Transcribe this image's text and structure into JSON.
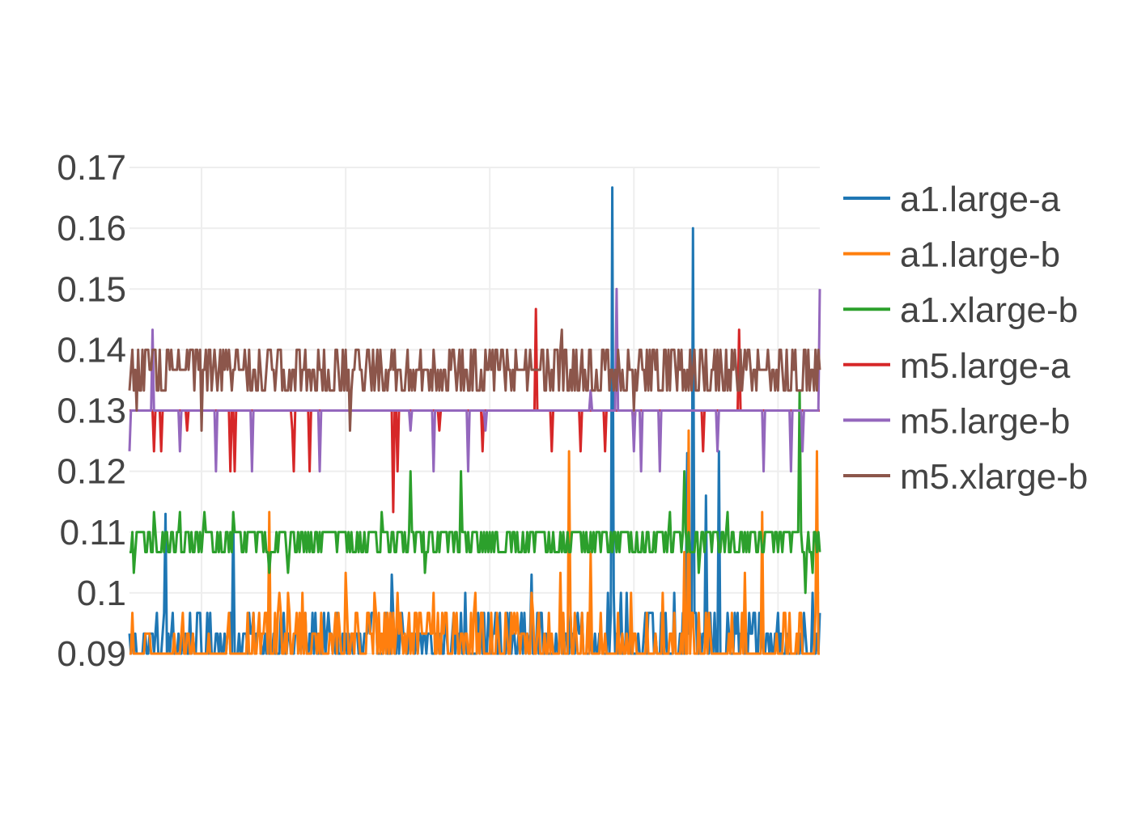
{
  "chart_data": {
    "type": "line",
    "title": "",
    "xlabel": "",
    "ylabel": "",
    "ylim": [
      0.09,
      0.17
    ],
    "yticks": [
      "0.17",
      "0.16",
      "0.15",
      "0.14",
      "0.13",
      "0.12",
      "0.11",
      "0.1",
      "0.09"
    ],
    "ytick_values": [
      0.17,
      0.16,
      0.15,
      0.14,
      0.13,
      0.12,
      0.11,
      0.1,
      0.09
    ],
    "x_count": 480,
    "x_gridlines_at": [
      50,
      150,
      250,
      350,
      450
    ],
    "grid": true,
    "legend_position": "right",
    "series": [
      {
        "name": "a1.large-a",
        "color": "#1f77b4",
        "baseline": 0.09,
        "values_lo": 0.09,
        "values_hi": 0.1,
        "spikes": [
          [
            25,
            0.113
          ],
          [
            72,
            0.113
          ],
          [
            182,
            0.103
          ],
          [
            233,
            0.1
          ],
          [
            279,
            0.103
          ],
          [
            332,
            0.1
          ],
          [
            335,
            0.1667
          ],
          [
            336,
            0.1
          ],
          [
            341,
            0.1
          ],
          [
            345,
            0.1
          ],
          [
            378,
            0.1
          ],
          [
            386,
            0.1
          ],
          [
            387,
            0.123
          ],
          [
            389,
            0.1
          ],
          [
            391,
            0.16
          ],
          [
            400,
            0.116
          ],
          [
            409,
            0.1233
          ],
          [
            474,
            0.1
          ]
        ]
      },
      {
        "name": "a1.large-b",
        "color": "#ff7f0e",
        "baseline": 0.09,
        "values_lo": 0.09,
        "values_hi": 0.0967,
        "spikes": [
          [
            97,
            0.1133
          ],
          [
            104,
            0.1
          ],
          [
            110,
            0.1
          ],
          [
            120,
            0.1
          ],
          [
            150,
            0.1033
          ],
          [
            170,
            0.1
          ],
          [
            186,
            0.1
          ],
          [
            211,
            0.1
          ],
          [
            240,
            0.1
          ],
          [
            279,
            0.1
          ],
          [
            299,
            0.1033
          ],
          [
            305,
            0.1233
          ],
          [
            320,
            0.1067
          ],
          [
            348,
            0.1
          ],
          [
            370,
            0.1
          ],
          [
            385,
            0.1067
          ],
          [
            388,
            0.1267
          ],
          [
            427,
            0.1033
          ],
          [
            439,
            0.1133
          ],
          [
            477,
            0.1233
          ]
        ]
      },
      {
        "name": "a1.xlarge-b",
        "color": "#2ca02c",
        "baseline": 0.11,
        "values_lo": 0.1067,
        "values_hi": 0.11,
        "spikes": [
          [
            3,
            0.1033
          ],
          [
            17,
            0.1133
          ],
          [
            35,
            0.1133
          ],
          [
            52,
            0.1133
          ],
          [
            72,
            0.1133
          ],
          [
            97,
            0.1033
          ],
          [
            110,
            0.1033
          ],
          [
            175,
            0.1133
          ],
          [
            195,
            0.12
          ],
          [
            205,
            0.1033
          ],
          [
            230,
            0.12
          ],
          [
            300,
            0.1067
          ],
          [
            375,
            0.1133
          ],
          [
            385,
            0.12
          ],
          [
            395,
            0.1033
          ],
          [
            415,
            0.1133
          ],
          [
            465,
            0.1333
          ],
          [
            469,
            0.1
          ],
          [
            474,
            0.1033
          ]
        ]
      },
      {
        "name": "m5.large-a",
        "color": "#d62728",
        "baseline": 0.13,
        "values_lo": 0.13,
        "values_hi": 0.13,
        "spikes": [
          [
            17,
            0.1233
          ],
          [
            22,
            0.1233
          ],
          [
            40,
            0.1267
          ],
          [
            70,
            0.12
          ],
          [
            73,
            0.12
          ],
          [
            113,
            0.1267
          ],
          [
            114,
            0.12
          ],
          [
            125,
            0.12
          ],
          [
            183,
            0.1133
          ],
          [
            186,
            0.12
          ],
          [
            215,
            0.1267
          ],
          [
            245,
            0.1233
          ],
          [
            282,
            0.1467
          ],
          [
            293,
            0.1233
          ],
          [
            313,
            0.1233
          ],
          [
            330,
            0.1233
          ],
          [
            350,
            0.1267
          ],
          [
            398,
            0.1233
          ],
          [
            423,
            0.1433
          ]
        ]
      },
      {
        "name": "m5.large-b",
        "color": "#9467bd",
        "baseline": 0.13,
        "values_lo": 0.13,
        "values_hi": 0.13,
        "spikes": [
          [
            0,
            0.1233
          ],
          [
            16,
            0.1433
          ],
          [
            35,
            0.1233
          ],
          [
            60,
            0.12
          ],
          [
            85,
            0.12
          ],
          [
            132,
            0.12
          ],
          [
            195,
            0.1267
          ],
          [
            211,
            0.12
          ],
          [
            235,
            0.12
          ],
          [
            247,
            0.1267
          ],
          [
            320,
            0.1333
          ],
          [
            338,
            0.15
          ],
          [
            350,
            0.1233
          ],
          [
            355,
            0.12
          ],
          [
            368,
            0.12
          ],
          [
            408,
            0.1233
          ],
          [
            440,
            0.12
          ],
          [
            459,
            0.12
          ],
          [
            467,
            0.1233
          ],
          [
            479,
            0.15
          ]
        ]
      },
      {
        "name": "m5.xlarge-b",
        "color": "#8c564b",
        "baseline": 0.1333,
        "values_lo": 0.1333,
        "values_hi": 0.14,
        "spikes": [
          [
            5,
            0.13
          ],
          [
            50,
            0.1267
          ],
          [
            153,
            0.1267
          ],
          [
            300,
            0.1433
          ],
          [
            350,
            0.13
          ]
        ]
      }
    ]
  }
}
